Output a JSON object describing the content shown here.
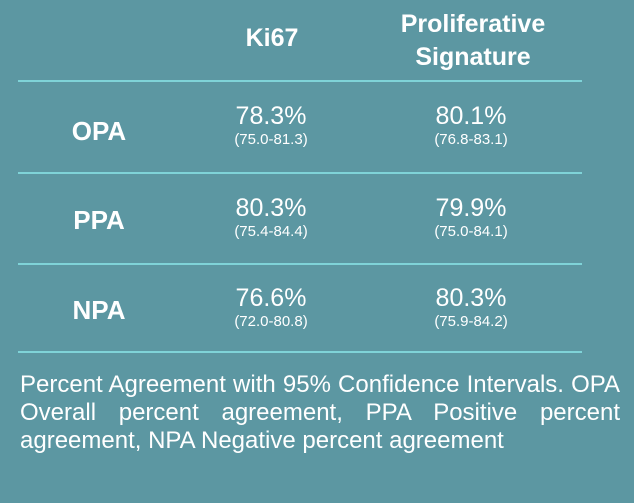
{
  "table": {
    "columns": [
      "Ki67",
      "Proliferative Signature"
    ],
    "rows": [
      {
        "label": "OPA",
        "ki67": {
          "value": "78.3%",
          "ci": "(75.0-81.3)"
        },
        "prolif": {
          "value": "80.1%",
          "ci": "(76.8-83.1)"
        }
      },
      {
        "label": "PPA",
        "ki67": {
          "value": "80.3%",
          "ci": "(75.4-84.4)"
        },
        "prolif": {
          "value": "79.9%",
          "ci": "(75.0-84.1)"
        }
      },
      {
        "label": "NPA",
        "ki67": {
          "value": "76.6%",
          "ci": "(72.0-80.8)"
        },
        "prolif": {
          "value": "80.3%",
          "ci": "(75.9-84.2)"
        }
      }
    ]
  },
  "caption": "Percent Agreement with 95% Confidence Intervals. OPA Overall percent agreement, PPA Positive percent agreement, NPA Negative percent agreement",
  "colors": {
    "background": "#5c97a2",
    "divider": "#7fd3d8",
    "text": "#ffffff"
  }
}
